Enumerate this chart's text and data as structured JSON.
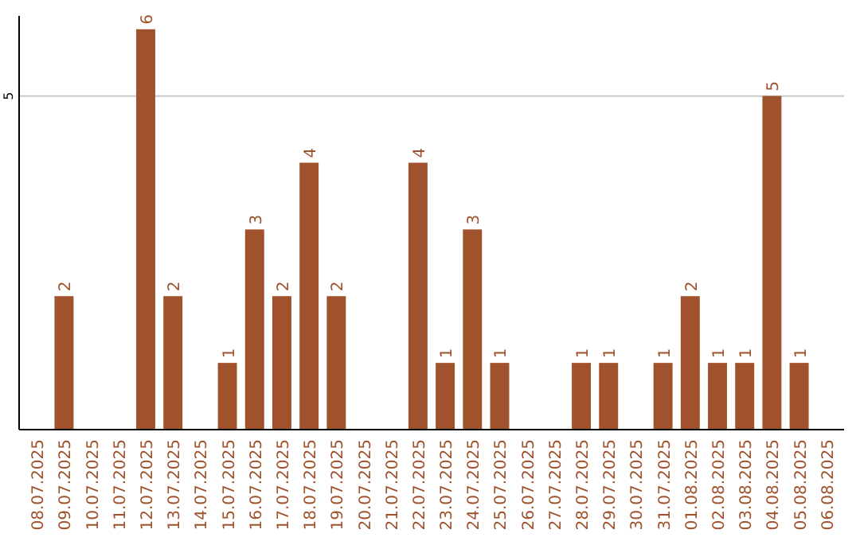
{
  "chart_data": {
    "type": "bar",
    "categories": [
      "08.07.2025",
      "09.07.2025",
      "10.07.2025",
      "11.07.2025",
      "12.07.2025",
      "13.07.2025",
      "14.07.2025",
      "15.07.2025",
      "16.07.2025",
      "17.07.2025",
      "18.07.2025",
      "19.07.2025",
      "20.07.2025",
      "21.07.2025",
      "22.07.2025",
      "23.07.2025",
      "24.07.2025",
      "25.07.2025",
      "26.07.2025",
      "27.07.2025",
      "28.07.2025",
      "29.07.2025",
      "30.07.2025",
      "31.07.2025",
      "01.08.2025",
      "02.08.2025",
      "03.08.2025",
      "04.08.2025",
      "05.08.2025",
      "06.08.2025"
    ],
    "values": [
      0,
      2,
      0,
      0,
      6,
      2,
      0,
      1,
      3,
      2,
      4,
      2,
      0,
      0,
      4,
      1,
      3,
      1,
      0,
      0,
      1,
      1,
      0,
      1,
      2,
      1,
      1,
      5,
      1,
      0
    ],
    "value_labels": [
      null,
      "2",
      null,
      null,
      "6",
      "2",
      null,
      "1",
      "3",
      "2",
      "4",
      "2",
      null,
      null,
      "4",
      "1",
      "3",
      "1",
      null,
      null,
      "1",
      "1",
      null,
      "1",
      "2",
      "1",
      "1",
      "5",
      "1",
      null
    ],
    "color": "#a0522d",
    "ylim": [
      0,
      6.2
    ],
    "yticks": [
      5
    ],
    "grid": "y"
  }
}
